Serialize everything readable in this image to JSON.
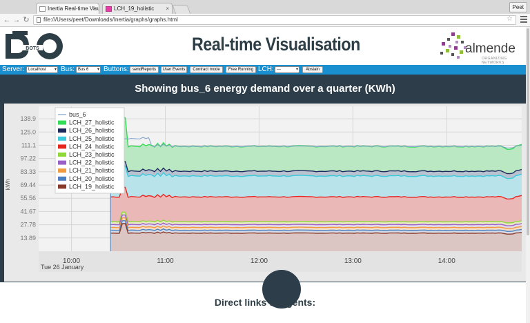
{
  "browser": {
    "tabs": [
      {
        "label": "Inertia Real-time Visualisation",
        "active": true
      },
      {
        "label": "LCH_19_holistic",
        "active": false
      }
    ],
    "profile": "Peet",
    "url": "file:///Users/peet/Downloads/Inertia/graphs/graphs.html"
  },
  "header": {
    "title": "Real-time Visualisation",
    "logo_left_text": "BOTS",
    "logo_right_brand": "almende",
    "logo_right_sub": "ORGANIZING NETWORKS"
  },
  "controls": {
    "server_label": "Server:",
    "server_value": "Localhost",
    "bus_label": "Bus:",
    "bus_value": "Bus 6",
    "buttons_label": "Buttons:",
    "buttons": [
      "sendReports",
      "User Events",
      "Contract mode",
      "Free Running"
    ],
    "lch_label": "LCH:",
    "lch_value": "---",
    "abstain_label": "Abstain"
  },
  "colors": {
    "panel": "#2d3e4a",
    "control_bar": "#1a8fd0"
  },
  "chart_data": {
    "type": "area",
    "title": "Showing bus_6 energy demand over a quarter (KWh)",
    "ylabel": "kWh",
    "yticks": [
      "138.9",
      "125.0",
      "111.1",
      "97.22",
      "83.33",
      "69.44",
      "55.56",
      "41.67",
      "27.78",
      "13.89"
    ],
    "ytick_values": [
      138.9,
      125.0,
      111.1,
      97.22,
      83.33,
      69.44,
      55.56,
      41.67,
      27.78,
      13.89
    ],
    "ylim": [
      0,
      152
    ],
    "xticks": [
      "10:00",
      "11:00",
      "12:00",
      "13:00",
      "14:00"
    ],
    "x_date_label": "Tue 26 January",
    "xlim": [
      "09:39",
      "14:48"
    ],
    "data_start": "10:25",
    "grid": true,
    "legend_position": "top-left",
    "legend": [
      {
        "name": "bus_6",
        "color": "#7e9fc9",
        "line": true
      },
      {
        "name": "LCH_27_holistic",
        "color": "#33dd55"
      },
      {
        "name": "LCH_26_holistic",
        "color": "#1c2a5e"
      },
      {
        "name": "LCH_25_holistic",
        "color": "#3bc9dd"
      },
      {
        "name": "LCH_24_holistic",
        "color": "#e8251f"
      },
      {
        "name": "LCH_23_holistic",
        "color": "#8ed83a"
      },
      {
        "name": "LCH_22_holistic",
        "color": "#9b5fc8"
      },
      {
        "name": "LCH_21_holistic",
        "color": "#f19a3f"
      },
      {
        "name": "LCH_20_holistic",
        "color": "#4a80bf"
      },
      {
        "name": "LCH_19_holistic",
        "color": "#8a3a2a"
      }
    ],
    "stack_layers": [
      {
        "name": "LCH_27_holistic",
        "fill": "#b9e8c2",
        "line": "#33dd55",
        "level": 110
      },
      {
        "name": "LCH_26_holistic",
        "fill": "#b9c3cf",
        "line": "#1c2a5e",
        "level": 84
      },
      {
        "name": "LCH_25_holistic",
        "fill": "#b8e3ea",
        "line": "#3bc9dd",
        "level": 79
      },
      {
        "name": "LCH_24_holistic",
        "fill": "#eab8b6",
        "line": "#e8251f",
        "level": 57
      },
      {
        "name": "LCH_23_holistic",
        "fill": "#e8e9c4",
        "line": "#8ed83a",
        "level": 31
      },
      {
        "name": "LCH_22_holistic",
        "fill": "#e2d9ec",
        "line": "#9b5fc8",
        "level": 28
      },
      {
        "name": "LCH_21_holistic",
        "fill": "#f4dcc6",
        "line": "#f19a3f",
        "level": 25
      },
      {
        "name": "LCH_20_holistic",
        "fill": "#d6dde9",
        "line": "#4a80bf",
        "level": 22
      },
      {
        "name": "LCH_19_holistic",
        "fill": "#dcc6c3",
        "line": "#8a3a2a",
        "level": 19
      }
    ]
  },
  "footer": {
    "links_heading": "Direct links to agents:"
  }
}
